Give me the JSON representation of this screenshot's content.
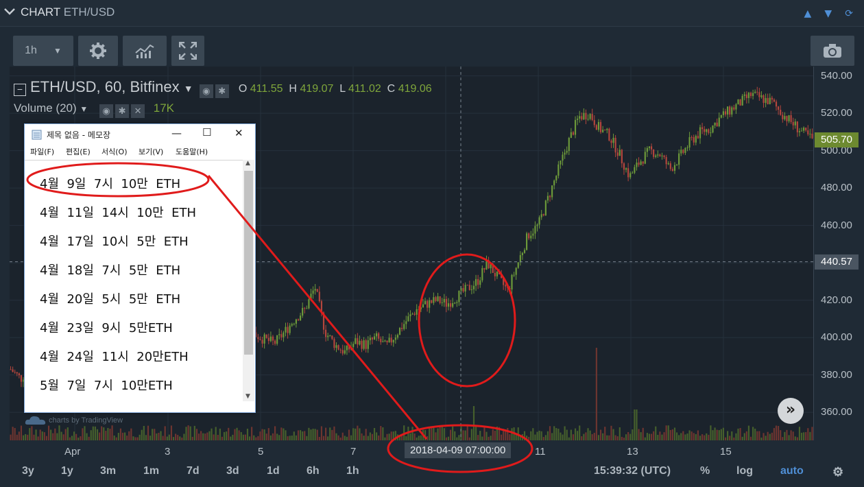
{
  "header": {
    "title": "CHART",
    "symbol": "ETH/USD"
  },
  "toolbar": {
    "interval": "1h"
  },
  "legend": {
    "symbol_line": "ETH/USD, 60, Bitfinex",
    "o_label": "O",
    "o": "411.55",
    "h_label": "H",
    "h": "419.07",
    "l_label": "L",
    "l": "411.02",
    "c_label": "C",
    "c": "419.06",
    "volume_label": "Volume (20)",
    "volume_value": "17K"
  },
  "notepad": {
    "title": "제목 없음 - 메모장",
    "menu": [
      "파일(F)",
      "편집(E)",
      "서식(O)",
      "보기(V)",
      "도움말(H)"
    ],
    "lines": [
      "4월  9일  7시  10만  ETH",
      "4월  11일  14시  10만  ETH",
      "4월  17일  10시  5만  ETH",
      "4월  18일  7시  5만  ETH",
      "4월  20일  5시  5만  ETH",
      "4월  23일  9시  5만ETH",
      "4월  24일  11시  20만ETH",
      "5월  7일  7시  10만ETH"
    ]
  },
  "watermark": "charts by TradingView",
  "y_axis": {
    "ticks": [
      "540.00",
      "520.00",
      "500.00",
      "480.00",
      "460.00",
      "440.00",
      "420.00",
      "400.00",
      "380.00",
      "360.00"
    ],
    "last_price": "505.70",
    "crosshair_price": "440.57"
  },
  "x_axis": {
    "ticks": [
      "Apr",
      "3",
      "5",
      "7",
      "11",
      "13",
      "15"
    ],
    "crosshair_time": "2018-04-09 07:00:00"
  },
  "bottom": {
    "ranges": [
      "3y",
      "1y",
      "3m",
      "1m",
      "7d",
      "3d",
      "1d",
      "6h",
      "1h"
    ],
    "clock": "15:39:32 (UTC)",
    "percent": "%",
    "log": "log",
    "auto": "auto"
  },
  "colors": {
    "up": "#6d9a3a",
    "down": "#b5463d",
    "accent": "#4f8fd6",
    "annotation": "#e01b1b"
  },
  "chart_data": {
    "type": "line",
    "ylim": [
      345,
      545
    ],
    "x_tick_labels": [
      "Apr",
      "3",
      "5",
      "7",
      "11",
      "13",
      "15"
    ],
    "y_tick_labels": [
      540,
      520,
      500,
      480,
      460,
      440,
      420,
      400,
      380,
      360
    ],
    "series": [
      {
        "values": [
          383,
          378,
          385,
          380,
          378,
          382,
          376,
          379,
          383,
          381,
          380,
          372,
          368,
          366,
          370,
          376,
          380,
          384,
          390,
          388,
          386,
          389,
          395,
          398,
          402,
          399,
          397,
          403,
          410,
          415,
          427,
          403,
          396,
          392,
          398,
          396,
          400,
          395,
          402,
          409,
          415,
          418,
          420,
          418,
          422,
          426,
          430,
          440,
          432,
          425,
          440,
          455,
          460,
          475,
          490,
          505,
          518,
          520,
          512,
          508,
          498,
          486,
          494,
          500,
          498,
          490,
          497,
          505,
          510,
          512,
          518,
          522,
          526,
          530,
          528,
          526,
          520,
          515,
          510,
          506
        ]
      }
    ]
  }
}
